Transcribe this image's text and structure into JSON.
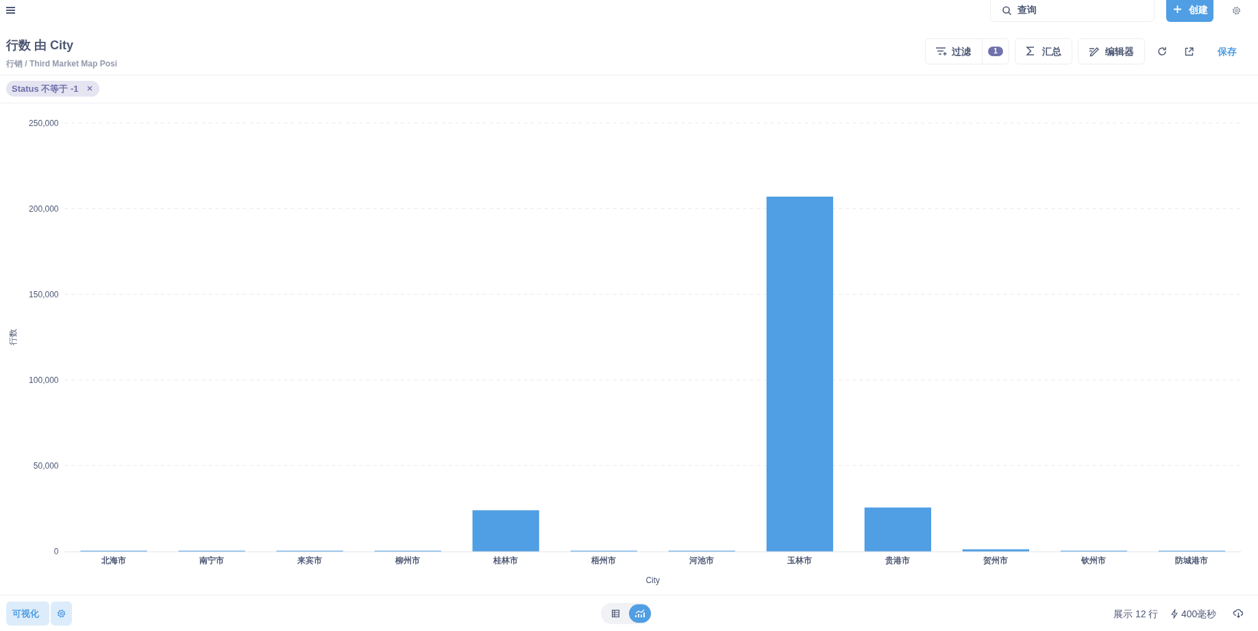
{
  "chart_data": {
    "type": "bar",
    "title": "行数 由 City",
    "subtitle": "行销 / Third Market Map Posi",
    "xlabel": "City",
    "ylabel": "行数",
    "categories": [
      "北海市",
      "南宁市",
      "来宾市",
      "柳州市",
      "桂林市",
      "梧州市",
      "河池市",
      "玉林市",
      "贵港市",
      "贺州市",
      "钦州市",
      "防城港市"
    ],
    "values": [
      400,
      400,
      400,
      400,
      24000,
      400,
      400,
      207000,
      25600,
      1200,
      400,
      400
    ],
    "color": "#509ee3",
    "ylim": [
      0,
      250000
    ],
    "yticks": [
      0,
      {
        "value": 50000,
        "label": "50,000"
      },
      {
        "value": 100000,
        "label": "100,000"
      },
      {
        "value": 150000,
        "label": "150,000"
      },
      {
        "value": 200000,
        "label": "200,000"
      },
      {
        "value": 250000,
        "label": "250,000"
      }
    ],
    "grid": "y",
    "annotations": [
      "Status 不等于 -1",
      "查询",
      "创建",
      "过滤",
      "1",
      "汇总",
      "编辑器",
      "保存",
      "可视化",
      "展示 12 行",
      "400毫秒"
    ]
  }
}
